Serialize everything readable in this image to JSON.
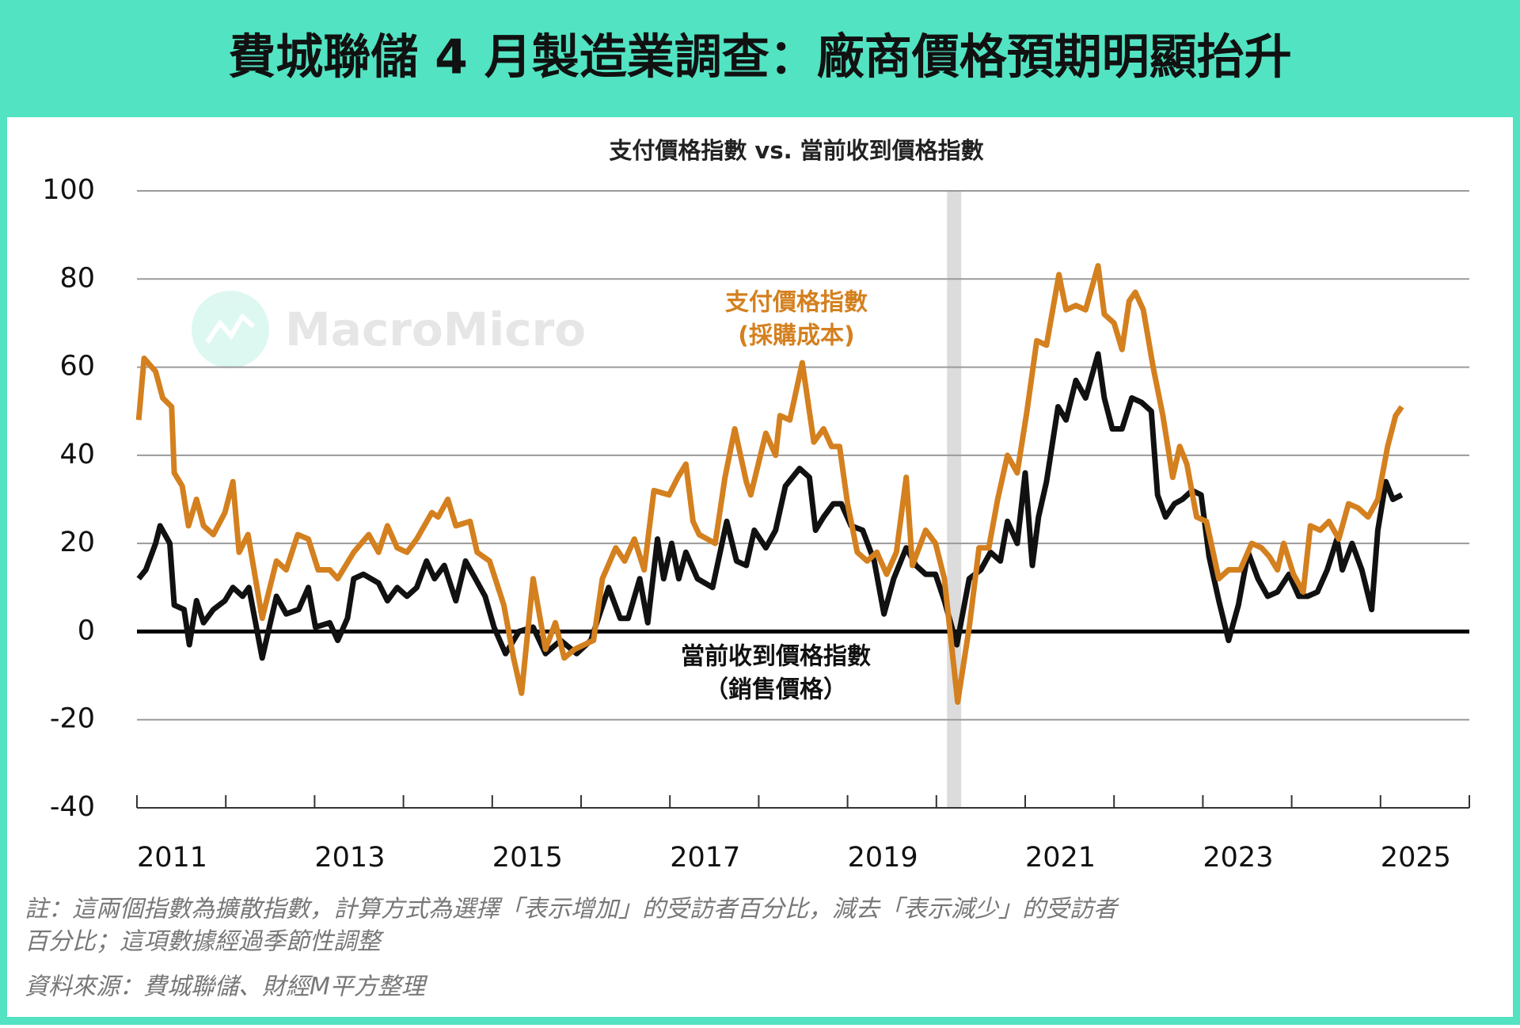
{
  "chart_data": {
    "type": "line",
    "title": "費城聯儲 4 月製造業調查：廠商價格預期明顯抬升",
    "subtitle": "支付價格指數 vs. 當前收到價格指數",
    "watermark": "MacroMicro",
    "xlim": [
      2011,
      2026
    ],
    "xticks": [
      2011,
      2013,
      2015,
      2017,
      2019,
      2021,
      2023,
      2025
    ],
    "xminor_ticks": [
      2012,
      2014,
      2016,
      2018,
      2020,
      2022,
      2024,
      2026
    ],
    "ylim": [
      -40,
      100
    ],
    "yticks": [
      -40,
      -20,
      0,
      20,
      40,
      60,
      80,
      100
    ],
    "grid": true,
    "zero_line": true,
    "shade": [
      2020.12,
      2020.28
    ],
    "series": [
      {
        "name": "支付價格指數",
        "note": "(採購成本)",
        "color": "#d4801f",
        "x": [
          2011.02,
          2011.08,
          2011.21,
          2011.29,
          2011.39,
          2011.42,
          2011.51,
          2011.58,
          2011.67,
          2011.75,
          2011.86,
          2011.99,
          2012.08,
          2012.15,
          2012.25,
          2012.41,
          2012.57,
          2012.68,
          2012.81,
          2012.93,
          2013.04,
          2013.17,
          2013.26,
          2013.44,
          2013.61,
          2013.72,
          2013.82,
          2013.93,
          2014.04,
          2014.15,
          2014.32,
          2014.39,
          2014.5,
          2014.59,
          2014.75,
          2014.83,
          2014.97,
          2015.13,
          2015.24,
          2015.33,
          2015.46,
          2015.6,
          2015.71,
          2015.81,
          2015.93,
          2016.14,
          2016.24,
          2016.39,
          2016.49,
          2016.6,
          2016.71,
          2016.82,
          2016.99,
          2017.09,
          2017.18,
          2017.26,
          2017.33,
          2017.51,
          2017.62,
          2017.73,
          2017.86,
          2017.91,
          2018.08,
          2018.19,
          2018.24,
          2018.35,
          2018.49,
          2018.62,
          2018.73,
          2018.82,
          2018.91,
          2019.0,
          2019.11,
          2019.22,
          2019.33,
          2019.44,
          2019.55,
          2019.66,
          2019.73,
          2019.88,
          2019.99,
          2020.09,
          2020.24,
          2020.37,
          2020.48,
          2020.59,
          2020.69,
          2020.8,
          2020.91,
          2021.02,
          2021.13,
          2021.24,
          2021.38,
          2021.46,
          2021.57,
          2021.68,
          2021.82,
          2021.89,
          2022.0,
          2022.09,
          2022.17,
          2022.24,
          2022.33,
          2022.44,
          2022.55,
          2022.66,
          2022.74,
          2022.82,
          2022.93,
          2023.04,
          2023.18,
          2023.29,
          2023.42,
          2023.55,
          2023.66,
          2023.75,
          2023.84,
          2023.91,
          2024.02,
          2024.13,
          2024.21,
          2024.32,
          2024.42,
          2024.53,
          2024.64,
          2024.75,
          2024.86,
          2024.97,
          2025.08,
          2025.17,
          2025.24
        ],
        "values": [
          48,
          62,
          59,
          53,
          51,
          36,
          33,
          24,
          30,
          24,
          22,
          27,
          34,
          18,
          22,
          3,
          16,
          14,
          22,
          21,
          14,
          14,
          12,
          18,
          22,
          18,
          24,
          19,
          18,
          21,
          27,
          26,
          30,
          24,
          25,
          18,
          16,
          6,
          -6,
          -14,
          12,
          -4,
          2,
          -6,
          -4,
          -2,
          12,
          19,
          16,
          21,
          14,
          32,
          31,
          35,
          38,
          25,
          22,
          20,
          35,
          46,
          34,
          31,
          45,
          40,
          49,
          48,
          61,
          43,
          46,
          42,
          42,
          29,
          18,
          16,
          18,
          13,
          18,
          35,
          15,
          23,
          20,
          12,
          -16,
          1,
          19,
          19,
          30,
          40,
          36,
          50,
          66,
          65,
          81,
          73,
          74,
          73,
          83,
          72,
          70,
          64,
          75,
          77,
          73,
          60,
          49,
          35,
          42,
          38,
          26,
          25,
          12,
          14,
          14,
          20,
          19,
          17,
          14,
          20,
          13,
          9,
          24,
          23,
          25,
          21,
          29,
          28,
          26,
          30,
          42,
          49,
          51
        ]
      },
      {
        "name": "當前收到價格指數",
        "note": "（銷售價格）",
        "color": "#111111",
        "x": [
          2011.02,
          2011.1,
          2011.21,
          2011.26,
          2011.37,
          2011.42,
          2011.53,
          2011.59,
          2011.67,
          2011.75,
          2011.86,
          2011.99,
          2012.08,
          2012.19,
          2012.26,
          2012.41,
          2012.57,
          2012.68,
          2012.82,
          2012.93,
          2013.01,
          2013.17,
          2013.26,
          2013.37,
          2013.44,
          2013.55,
          2013.72,
          2013.82,
          2013.93,
          2014.04,
          2014.15,
          2014.26,
          2014.35,
          2014.46,
          2014.59,
          2014.7,
          2014.81,
          2014.92,
          2015.02,
          2015.15,
          2015.3,
          2015.46,
          2015.6,
          2015.77,
          2015.95,
          2016.11,
          2016.31,
          2016.44,
          2016.53,
          2016.66,
          2016.75,
          2016.86,
          2016.93,
          2017.02,
          2017.1,
          2017.18,
          2017.31,
          2017.48,
          2017.64,
          2017.75,
          2017.86,
          2017.95,
          2018.08,
          2018.19,
          2018.3,
          2018.46,
          2018.57,
          2018.64,
          2018.73,
          2018.84,
          2018.93,
          2019.04,
          2019.17,
          2019.3,
          2019.41,
          2019.52,
          2019.66,
          2019.77,
          2019.88,
          2019.99,
          2020.09,
          2020.23,
          2020.37,
          2020.5,
          2020.61,
          2020.72,
          2020.8,
          2020.91,
          2021.0,
          2021.08,
          2021.15,
          2021.24,
          2021.37,
          2021.46,
          2021.57,
          2021.68,
          2021.82,
          2021.89,
          2021.98,
          2022.09,
          2022.2,
          2022.31,
          2022.42,
          2022.49,
          2022.58,
          2022.68,
          2022.77,
          2022.88,
          2022.98,
          2023.07,
          2023.18,
          2023.29,
          2023.4,
          2023.51,
          2023.62,
          2023.73,
          2023.84,
          2023.97,
          2024.08,
          2024.18,
          2024.29,
          2024.4,
          2024.51,
          2024.57,
          2024.68,
          2024.79,
          2024.9,
          2024.97,
          2025.06,
          2025.14,
          2025.24
        ],
        "values": [
          12,
          14,
          20,
          24,
          20,
          6,
          5,
          -3,
          7,
          2,
          5,
          7,
          10,
          8,
          10,
          -6,
          8,
          4,
          5,
          10,
          1,
          2,
          -2,
          3,
          12,
          13,
          11,
          7,
          10,
          8,
          10,
          16,
          12,
          15,
          7,
          16,
          12,
          8,
          1,
          -5,
          0,
          1,
          -5,
          -2,
          -5,
          -2,
          10,
          3,
          3,
          12,
          2,
          21,
          12,
          20,
          12,
          18,
          12,
          10,
          25,
          16,
          15,
          23,
          19,
          23,
          33,
          37,
          35,
          23,
          26,
          29,
          29,
          24,
          23,
          16,
          4,
          12,
          19,
          15,
          13,
          13,
          7,
          -3,
          12,
          14,
          18,
          16,
          25,
          20,
          36,
          15,
          26,
          34,
          51,
          48,
          57,
          53,
          63,
          53,
          46,
          46,
          53,
          52,
          50,
          31,
          26,
          29,
          30,
          32,
          31,
          17,
          7,
          -2,
          6,
          18,
          12,
          8,
          9,
          13,
          8,
          8,
          9,
          14,
          21,
          14,
          20,
          14,
          5,
          23,
          34,
          30,
          31
        ]
      }
    ],
    "notes": [
      "註：這兩個指數為擴散指數，計算方式為選擇「表示增加」的受訪者百分比，減去「表示減少」的受訪者",
      "百分比；這項數據經過季節性調整"
    ],
    "source": "資料來源：費城聯儲、財經M平方整理"
  }
}
